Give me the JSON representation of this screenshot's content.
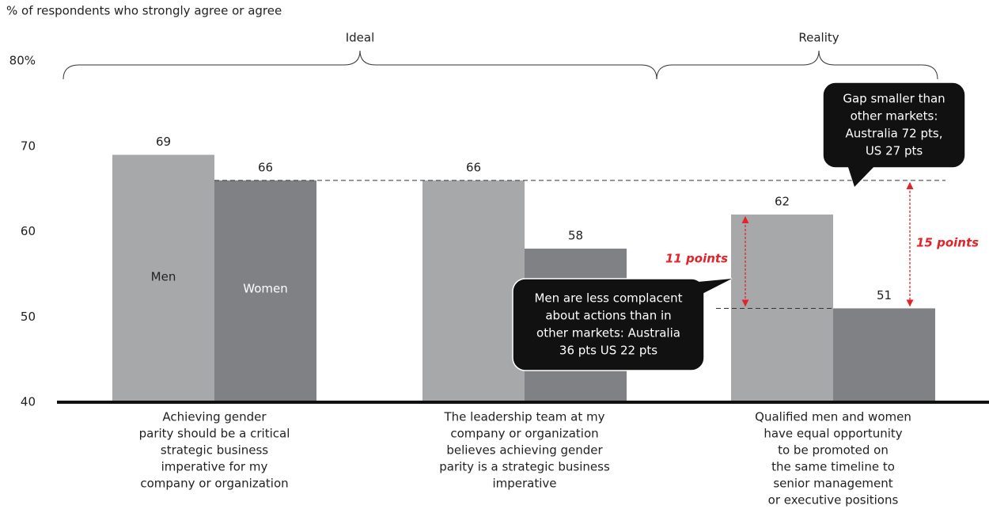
{
  "chart_data": {
    "type": "bar",
    "subtitle": "% of respondents who strongly agree or agree",
    "group_labels": [
      "Ideal",
      "Reality"
    ],
    "categories": [
      [
        "Achieving gender",
        "parity should be a critical",
        "strategic business",
        "imperative for my",
        "company or organization"
      ],
      [
        "The leadership team at my",
        "company or organization",
        "believes achieving gender",
        "parity is a strategic business",
        "imperative"
      ],
      [
        "Qualified men and women",
        "have equal opportunity",
        "to be promoted on",
        "the same timeline to",
        "senior management",
        "or executive positions"
      ]
    ],
    "series": [
      {
        "name": "Men",
        "color": "#a7a8aa",
        "values": [
          69,
          66,
          62
        ]
      },
      {
        "name": "Women",
        "color": "#808184",
        "values": [
          66,
          58,
          51
        ]
      }
    ],
    "ylim": [
      40,
      80
    ],
    "yticks": [
      40,
      50,
      60,
      70,
      {
        "value": 80,
        "label": "80%"
      }
    ],
    "annotations": {
      "gap_men": "11 points",
      "gap_reality": "15 points",
      "callout_men": [
        "Men are less complacent",
        "about actions than in",
        "other markets: Australia",
        "36 pts US 22 pts"
      ],
      "callout_gap": [
        "Gap smaller than",
        "other markets:",
        "Australia 72 pts,",
        "US 27 pts"
      ]
    }
  }
}
